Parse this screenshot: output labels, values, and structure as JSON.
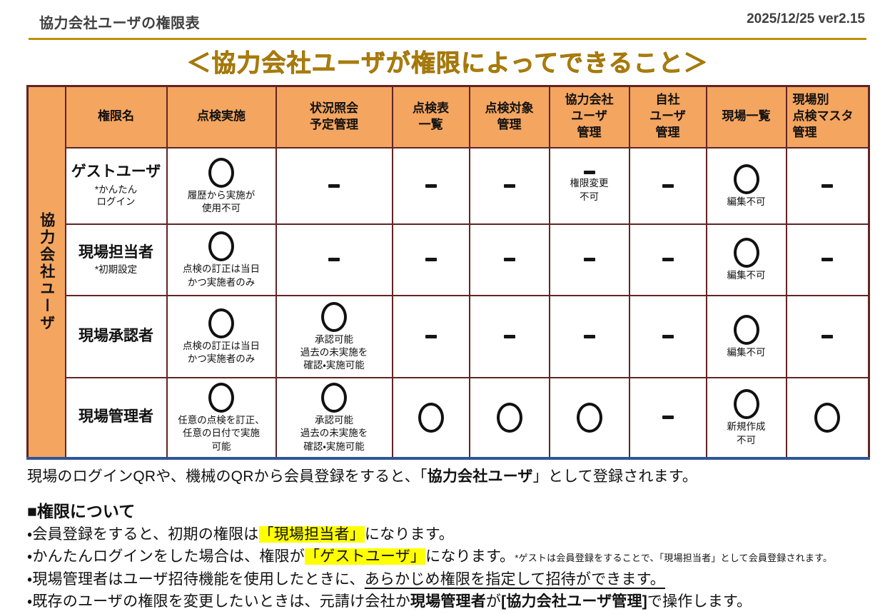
{
  "header": {
    "doc_title": "協力会社ユーザの権限表",
    "version": "2025/12/25 ver2.15"
  },
  "title": "＜協力会社ユーザが権限によってできること＞",
  "table": {
    "group_label": "協力会社ユーザ",
    "columns": [
      "権限名",
      "点検実施",
      "状況照会\n予定管理",
      "点検表\n一覧",
      "点検対象\n管理",
      "協力会社\nユーザ\n管理",
      "自社\nユーザ\n管理",
      "現場一覧",
      "現場別\n点検マスタ\n管理"
    ],
    "rows": [
      {
        "name": "ゲストユーザ",
        "sub": "*かんたん\nログイン",
        "cells": [
          {
            "mark": "circle",
            "note": "履歴から実施が\n使用不可"
          },
          {
            "mark": "dash"
          },
          {
            "mark": "dash"
          },
          {
            "mark": "dash"
          },
          {
            "mark": "dash",
            "note": "権限変更\n不可"
          },
          {
            "mark": "dash"
          },
          {
            "mark": "circle",
            "note": "編集不可"
          },
          {
            "mark": "dash"
          }
        ]
      },
      {
        "name": "現場担当者",
        "sub": "*初期設定",
        "cells": [
          {
            "mark": "circle",
            "note": "点検の訂正は当日\nかつ実施者のみ"
          },
          {
            "mark": "dash"
          },
          {
            "mark": "dash"
          },
          {
            "mark": "dash"
          },
          {
            "mark": "dash"
          },
          {
            "mark": "dash"
          },
          {
            "mark": "circle",
            "note": "編集不可"
          },
          {
            "mark": "dash"
          }
        ]
      },
      {
        "name": "現場承認者",
        "sub": "",
        "cells": [
          {
            "mark": "circle",
            "note": "点検の訂正は当日\nかつ実施者のみ"
          },
          {
            "mark": "circle",
            "note": "承認可能\n過去の未実施を\n確認・実施可能"
          },
          {
            "mark": "dash"
          },
          {
            "mark": "dash"
          },
          {
            "mark": "dash"
          },
          {
            "mark": "dash"
          },
          {
            "mark": "circle",
            "note": "編集不可"
          },
          {
            "mark": "dash"
          }
        ]
      },
      {
        "name": "現場管理者",
        "sub": "",
        "cells": [
          {
            "mark": "circle",
            "note": "任意の点検を訂正、\n任意の日付で実施\n可能"
          },
          {
            "mark": "circle",
            "note": "承認可能\n過去の未実施を\n確認・実施可能"
          },
          {
            "mark": "circle"
          },
          {
            "mark": "circle"
          },
          {
            "mark": "circle"
          },
          {
            "mark": "dash"
          },
          {
            "mark": "circle",
            "note": "新規作成\n不可"
          },
          {
            "mark": "circle"
          }
        ]
      }
    ]
  },
  "footer": {
    "note_line": [
      {
        "t": "現場のログインQRや、機械のQRから会員登録をすると、「"
      },
      {
        "t": "協力会社ユーザ",
        "b": true
      },
      {
        "t": "」として登録されます。"
      }
    ],
    "section_title": "■権限について",
    "bullets": [
      [
        {
          "t": "・会員登録をすると、初期の権限は"
        },
        {
          "t": "「現場担当者」",
          "hl": true
        },
        {
          "t": "になります。"
        }
      ],
      [
        {
          "t": "・かんたんログインをした場合は、権限が"
        },
        {
          "t": "「ゲストユーザ」",
          "hl": true
        },
        {
          "t": "になります。"
        },
        {
          "t": "*ゲストは会員登録をすることで、「現場担当者」として会員登録されます。",
          "small": true
        }
      ],
      [
        {
          "t": "・現場管理者はユーザ招待機能を使用したときに、"
        },
        {
          "t": "あらかじめ権限を指定して招待ができます。",
          "u": true
        }
      ],
      [
        {
          "t": "・既存のユーザの権限を変更したいときは、元請け会社か"
        },
        {
          "t": "現場管理者",
          "b": true
        },
        {
          "t": "が"
        },
        {
          "t": "[協力会社ユーザ管理]",
          "b": true
        },
        {
          "t": "で操作します。"
        }
      ]
    ]
  }
}
